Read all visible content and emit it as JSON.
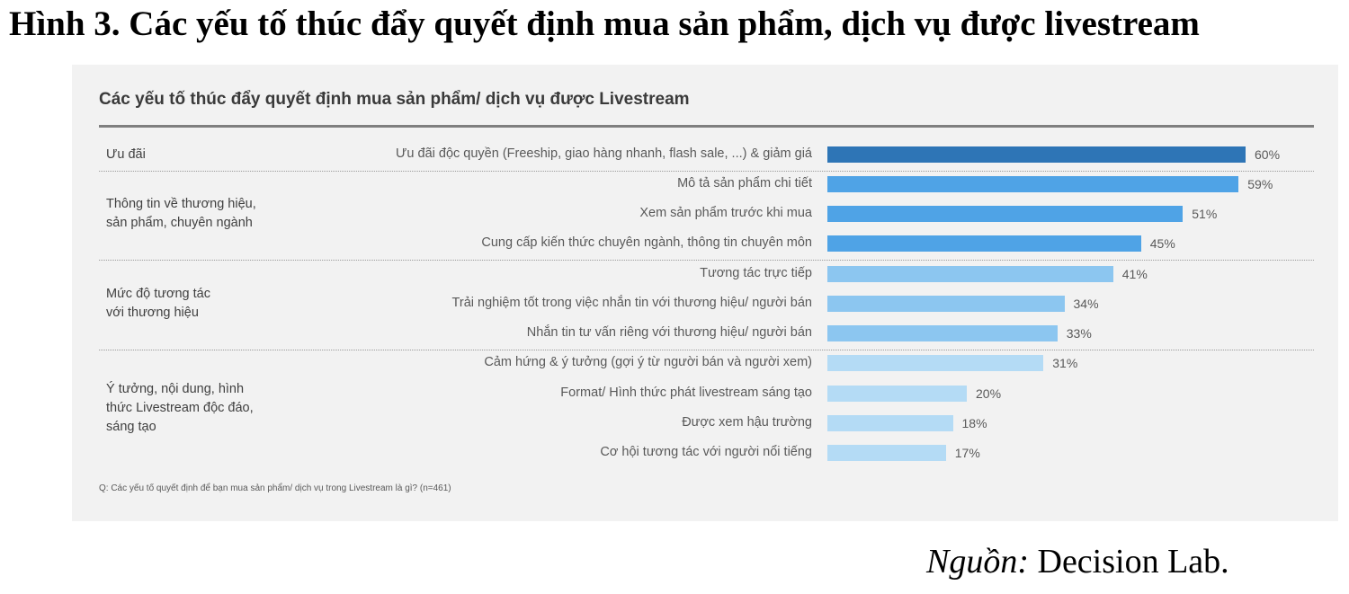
{
  "figure_title": "Hình 3. Các yếu tố thúc đẩy quyết định mua sản phẩm, dịch vụ được livestream",
  "chart_data": {
    "type": "bar",
    "orientation": "horizontal",
    "title": "Các yếu tố thúc đẩy quyết định mua sản phẩm/ dịch vụ được Livestream",
    "unit": "%",
    "xlim": [
      0,
      100
    ],
    "grid": false,
    "groups": [
      {
        "label": "Ưu đãi",
        "start": 0,
        "count": 1
      },
      {
        "label": "Thông tin về thương hiệu,\nsản phẩm, chuyên ngành",
        "start": 1,
        "count": 3
      },
      {
        "label": "Mức độ tương tác\nvới thương hiệu",
        "start": 4,
        "count": 3
      },
      {
        "label": "Ý tưởng, nội dung,  hình\nthức Livestream độc đáo,\nsáng tạo",
        "start": 7,
        "count": 4
      }
    ],
    "categories": [
      "Ưu đãi độc quyền (Freeship, giao hàng nhanh, flash sale, ...) & giảm giá",
      "Mô tả sản phẩm chi tiết",
      "Xem sản phẩm trước khi mua",
      "Cung cấp kiến thức chuyên ngành, thông tin chuyên môn",
      "Tương tác trực tiếp",
      "Trải nghiệm tốt trong việc nhắn tin với thương hiệu/ người bán",
      "Nhắn tin tư vấn riêng với thương hiệu/ người bán",
      "Cảm hứng & ý tưởng (gợi ý từ người bán và người xem)",
      "Format/ Hình thức phát livestream sáng tạo",
      "Được xem hậu trường",
      "Cơ hội tương tác với người nổi tiếng"
    ],
    "values": [
      60,
      59,
      51,
      45,
      41,
      34,
      33,
      31,
      20,
      18,
      17
    ],
    "value_labels": [
      "60%",
      "59%",
      "51%",
      "45%",
      "41%",
      "34%",
      "33%",
      "31%",
      "20%",
      "18%",
      "17%"
    ],
    "colors": [
      "#2e75b6",
      "#4fa3e6",
      "#4fa3e6",
      "#4fa3e6",
      "#8cc6f0",
      "#8cc6f0",
      "#8cc6f0",
      "#b4dbf5",
      "#b4dbf5",
      "#b4dbf5",
      "#b4dbf5"
    ]
  },
  "footnote": "Q: Các yếu tố quyết định để bạn mua sản phẩm/ dịch vụ trong Livestream là gì? (n=461)",
  "source_label": "Nguồn:",
  "source_text": " Decision Lab."
}
